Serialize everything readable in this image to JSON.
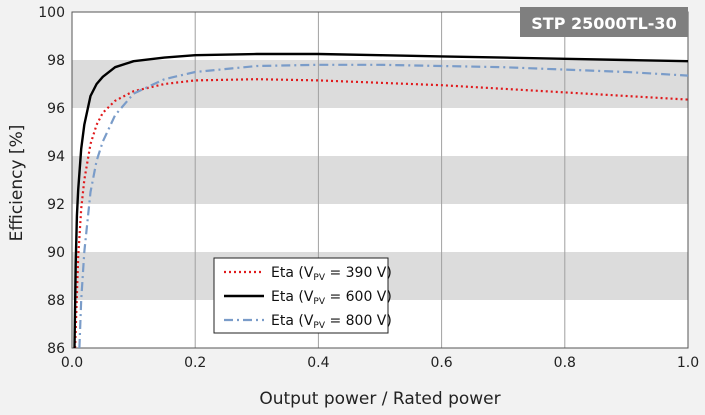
{
  "chart_data": {
    "type": "line",
    "badge": "STP 25000TL-30",
    "xlabel": "Output power / Rated power",
    "ylabel": "Efficiency [%]",
    "xlim": [
      0,
      1.0
    ],
    "ylim": [
      86,
      100
    ],
    "x_ticks": [
      "0.0",
      "0.2",
      "0.4",
      "0.6",
      "0.8",
      "1.0"
    ],
    "y_ticks": [
      "86",
      "88",
      "90",
      "92",
      "94",
      "96",
      "98",
      "100"
    ],
    "grid": "vertical lines at x ticks, alternating horizontal gray bands every 2%",
    "legend_position": "bottom-left",
    "legend_text_prefix": "Eta (V",
    "legend_subscript": "PV",
    "series": [
      {
        "name": "Eta (VPV = 390 V)",
        "legend_value": " = 390 V)",
        "color": "#e0191b",
        "style": "dotted",
        "x": [
          0.005,
          0.01,
          0.015,
          0.02,
          0.03,
          0.04,
          0.05,
          0.07,
          0.1,
          0.15,
          0.2,
          0.3,
          0.4,
          0.5,
          0.6,
          0.7,
          0.8,
          0.9,
          1.0
        ],
        "y": [
          86.0,
          89.8,
          91.8,
          93.0,
          94.5,
          95.3,
          95.8,
          96.3,
          96.7,
          97.0,
          97.15,
          97.2,
          97.15,
          97.05,
          96.95,
          96.8,
          96.65,
          96.5,
          96.35
        ]
      },
      {
        "name": "Eta (VPV = 600 V)",
        "legend_value": " = 600 V)",
        "color": "#000000",
        "style": "solid",
        "x": [
          0.004,
          0.006,
          0.008,
          0.01,
          0.015,
          0.02,
          0.03,
          0.04,
          0.05,
          0.07,
          0.1,
          0.15,
          0.2,
          0.3,
          0.4,
          0.5,
          0.6,
          0.7,
          0.8,
          0.9,
          1.0
        ],
        "y": [
          86.0,
          89.5,
          91.5,
          92.6,
          94.3,
          95.3,
          96.5,
          97.0,
          97.3,
          97.7,
          97.95,
          98.1,
          98.2,
          98.25,
          98.25,
          98.2,
          98.15,
          98.1,
          98.05,
          98.0,
          97.95
        ]
      },
      {
        "name": "Eta (VPV = 800 V)",
        "legend_value": " = 800 V)",
        "color": "#7a9cc9",
        "style": "dashdot",
        "x": [
          0.012,
          0.015,
          0.02,
          0.03,
          0.04,
          0.05,
          0.07,
          0.1,
          0.15,
          0.2,
          0.3,
          0.4,
          0.5,
          0.6,
          0.7,
          0.8,
          0.9,
          1.0
        ],
        "y": [
          86.0,
          88.0,
          90.0,
          92.5,
          93.8,
          94.6,
          95.7,
          96.6,
          97.2,
          97.5,
          97.75,
          97.8,
          97.8,
          97.75,
          97.7,
          97.6,
          97.5,
          97.35
        ]
      }
    ]
  }
}
